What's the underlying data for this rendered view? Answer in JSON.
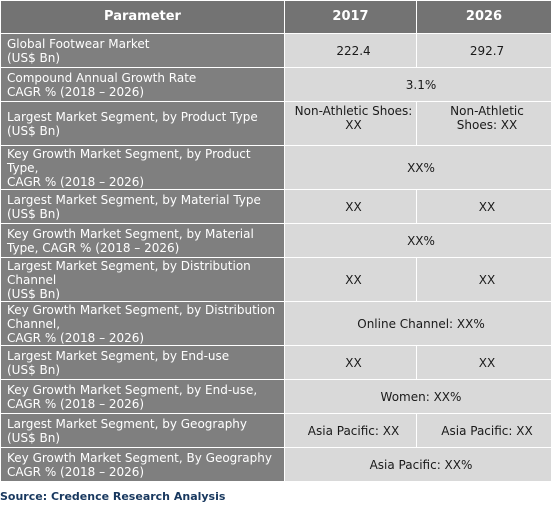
{
  "header": {
    "parameter": "Parameter",
    "year_1": "2017",
    "year_2": "2026"
  },
  "rows": [
    {
      "param": [
        "Global Footwear Market",
        "(US$ Bn)"
      ],
      "v2017": "222.4",
      "v2026": "292.7"
    },
    {
      "param": [
        "Compound Annual Growth Rate",
        "CAGR % (2018 – 2026)"
      ],
      "merged": "3.1%"
    },
    {
      "param": [
        "Largest Market Segment, by Product Type",
        "(US$ Bn)"
      ],
      "v2017": [
        "Non-Athletic Shoes:",
        "XX"
      ],
      "v2026": [
        "Non-Athletic",
        "Shoes: XX"
      ]
    },
    {
      "param": [
        "Key Growth Market Segment, by Product",
        "Type,",
        "CAGR % (2018 – 2026)"
      ],
      "merged": "XX%"
    },
    {
      "param": [
        "Largest Market Segment, by Material Type",
        "(US$ Bn)"
      ],
      "v2017": "XX",
      "v2026": "XX"
    },
    {
      "param": [
        "Key Growth Market Segment, by Material",
        "Type, CAGR % (2018 – 2026)"
      ],
      "merged": "XX%"
    },
    {
      "param": [
        "Largest Market Segment, by Distribution",
        "Channel",
        "(US$ Bn)"
      ],
      "v2017": "XX",
      "v2026": "XX"
    },
    {
      "param": [
        "Key Growth Market Segment, by Distribution",
        "Channel,",
        "CAGR % (2018 – 2026)"
      ],
      "merged": "Online Channel: XX%"
    },
    {
      "param": [
        "Largest Market Segment, by End-use",
        "(US$ Bn)"
      ],
      "v2017": "XX",
      "v2026": "XX"
    },
    {
      "param": [
        "Key Growth Market Segment, by End-use,",
        "CAGR % (2018 – 2026)"
      ],
      "merged": "Women: XX%"
    },
    {
      "param": [
        "Largest Market Segment, by Geography",
        "(US$ Bn)"
      ],
      "v2017": "Asia Pacific: XX",
      "v2026": "Asia Pacific: XX"
    },
    {
      "param": [
        "Key Growth Market Segment, By Geography",
        "CAGR % (2018 – 2026)"
      ],
      "merged": "Asia Pacific: XX%"
    }
  ],
  "source": "Source: Credence Research Analysis"
}
